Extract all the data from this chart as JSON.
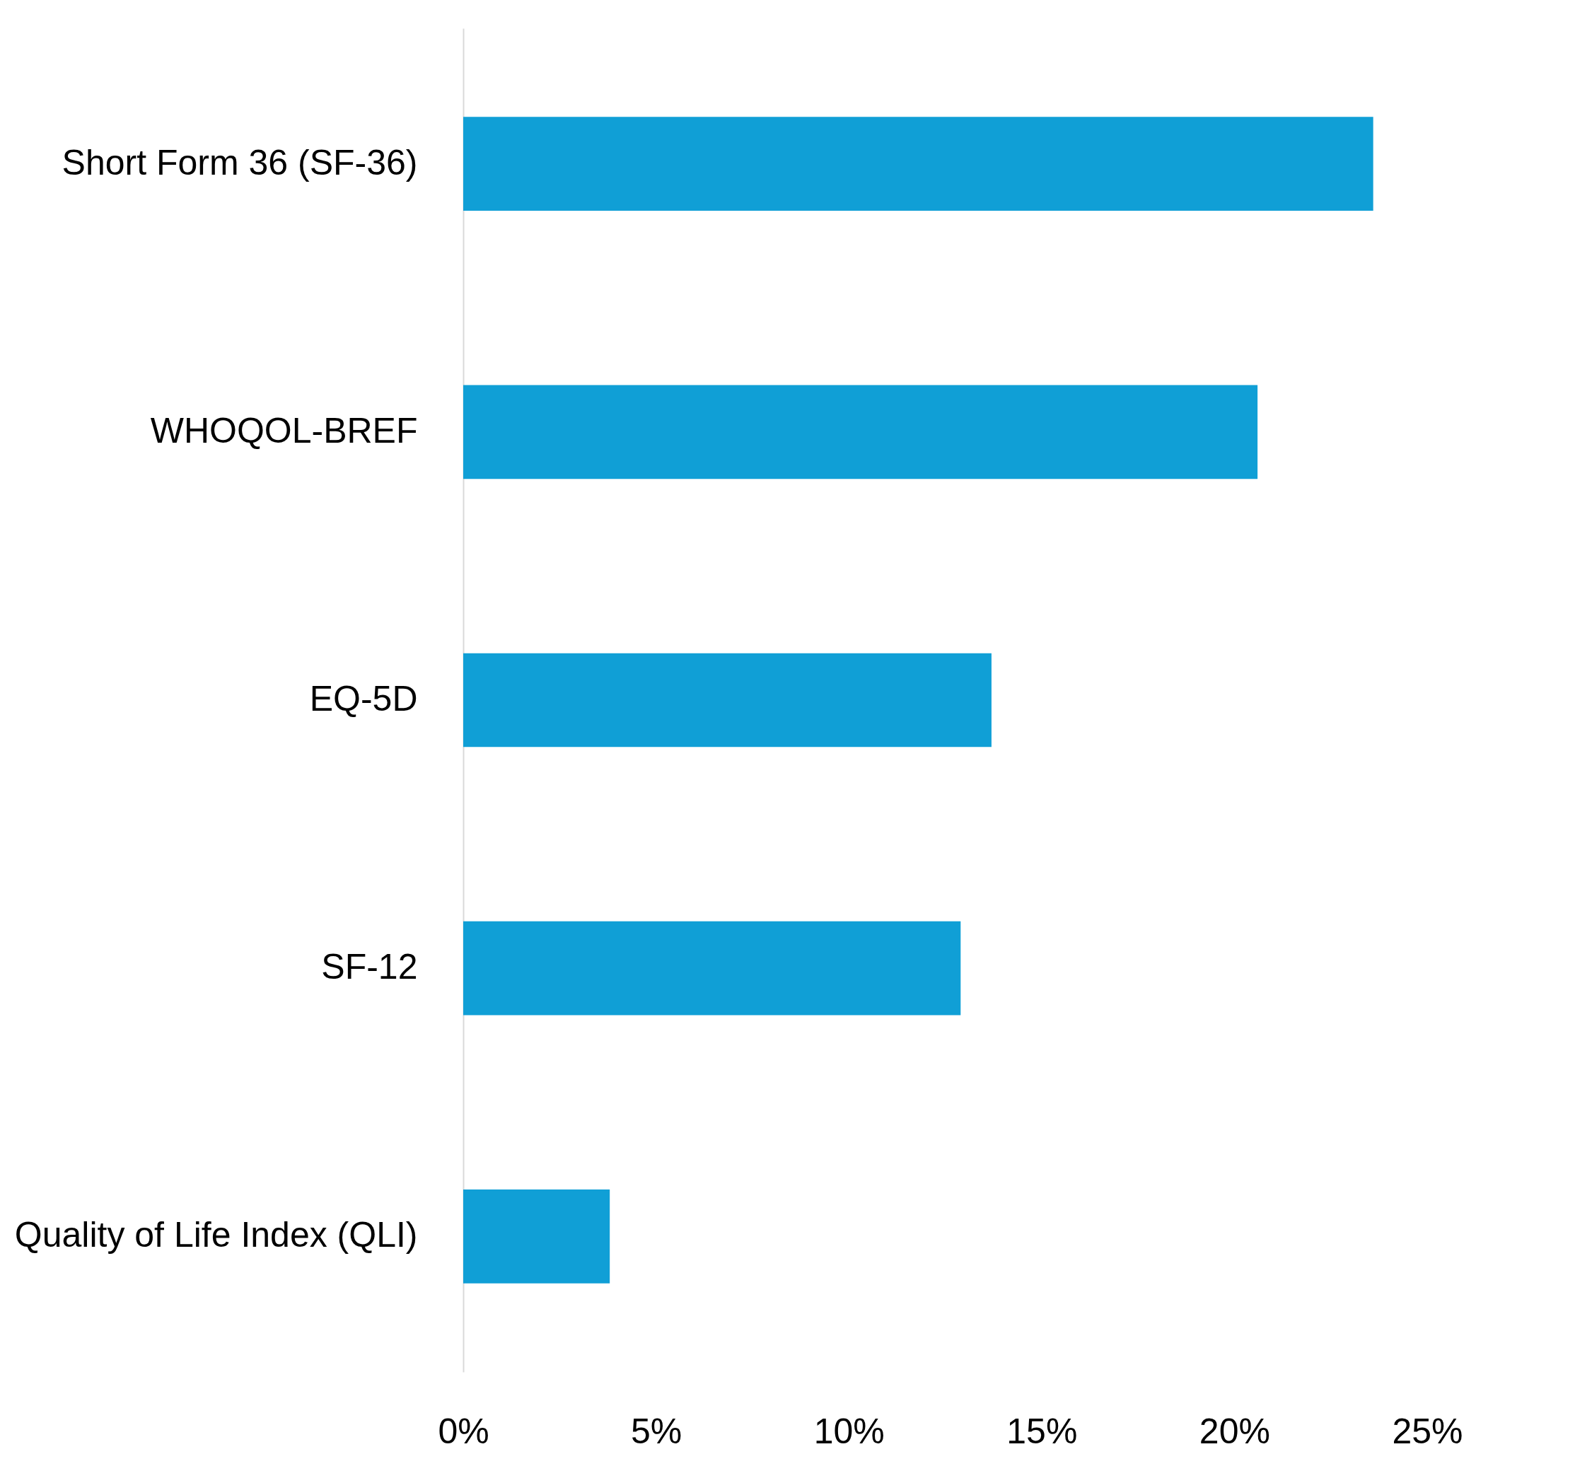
{
  "chart_data": {
    "type": "bar",
    "orientation": "horizontal",
    "categories": [
      "Short Form 36 (SF-36)",
      "WHOQOL-BREF",
      "EQ-5D",
      "SF-12",
      "Quality of Life Index (QLI)"
    ],
    "values": [
      23.6,
      20.6,
      13.7,
      12.9,
      3.8
    ],
    "color": "#109fd6",
    "xlim": [
      0,
      25
    ],
    "xticks": [
      {
        "value": 0,
        "label": "0%"
      },
      {
        "value": 5,
        "label": "5%"
      },
      {
        "value": 10,
        "label": "10%"
      },
      {
        "value": 15,
        "label": "15%"
      },
      {
        "value": 20,
        "label": "20%"
      },
      {
        "value": 25,
        "label": "25%"
      }
    ],
    "grid": false
  }
}
